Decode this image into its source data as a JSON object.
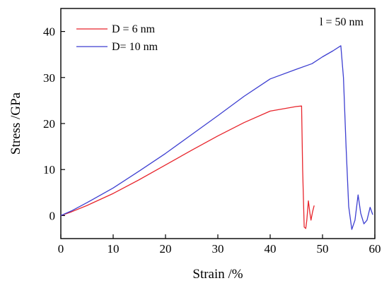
{
  "chart_data": {
    "type": "line",
    "title": "",
    "xlabel": "Strain  /%",
    "ylabel": "Stress  /GPa",
    "xlim": [
      0,
      60
    ],
    "ylim": [
      -5,
      45
    ],
    "xticks": [
      0,
      10,
      20,
      30,
      40,
      50,
      60
    ],
    "yticks": [
      0,
      10,
      20,
      30,
      40
    ],
    "grid": false,
    "legend_position": "top-left",
    "annotation": "l = 50 nm",
    "series": [
      {
        "name": "D = 6 nm",
        "color": "#e8252c",
        "x": [
          0,
          2,
          5,
          10,
          15,
          20,
          25,
          30,
          35,
          40,
          43,
          45,
          46,
          46.2,
          46.5,
          46.8,
          47.0,
          47.3,
          47.6,
          47.8,
          48.1,
          48.4
        ],
        "y": [
          0,
          0.8,
          2.2,
          4.8,
          7.8,
          11.0,
          14.2,
          17.3,
          20.2,
          22.7,
          23.3,
          23.7,
          23.8,
          10,
          -2.5,
          -2.8,
          -1.0,
          3.2,
          0.5,
          -1.0,
          0.8,
          2.2
        ]
      },
      {
        "name": "D= 10 nm",
        "color": "#3d3fd1",
        "x": [
          0,
          2,
          5,
          10,
          15,
          20,
          25,
          30,
          35,
          40,
          45,
          48,
          50,
          52,
          53.5,
          54,
          54.5,
          55.0,
          55.6,
          56.2,
          56.8,
          57.3,
          57.9,
          58.5,
          59.1,
          59.6
        ],
        "y": [
          0,
          1.0,
          2.8,
          6.0,
          9.7,
          13.5,
          17.6,
          21.7,
          25.9,
          29.7,
          31.8,
          33.0,
          34.5,
          35.8,
          36.9,
          30,
          15,
          2,
          -3.0,
          -1.0,
          4.5,
          0.5,
          -1.8,
          -1.0,
          1.8,
          0.2
        ]
      }
    ]
  }
}
